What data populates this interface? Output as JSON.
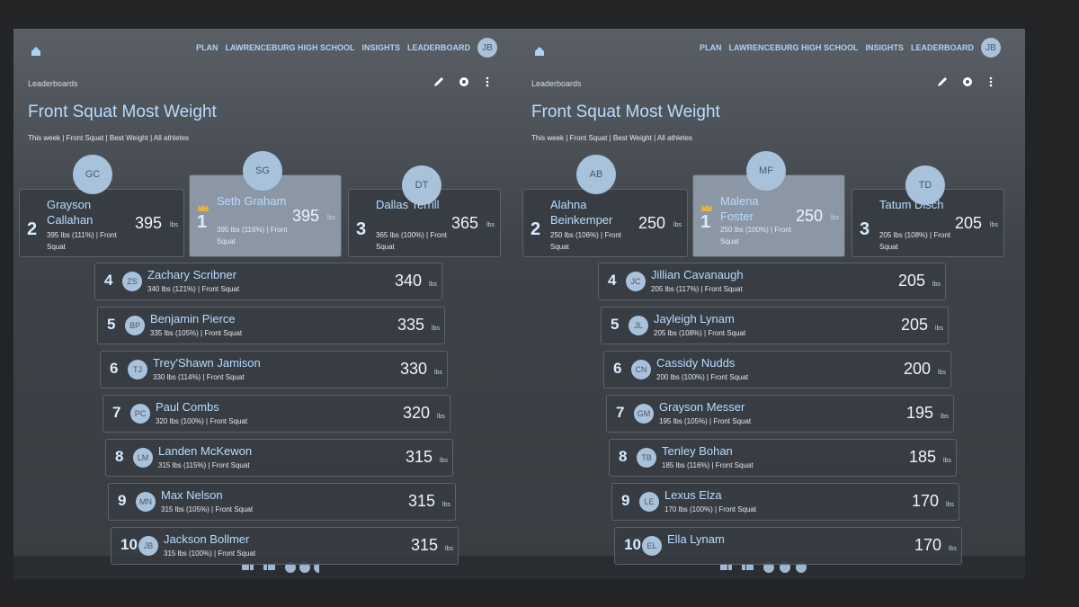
{
  "nav": {
    "items": [
      "PLAN",
      "LAWRENCEBURG HIGH SCHOOL",
      "INSIGHTS",
      "LEADERBOARD"
    ],
    "avatar": "JB"
  },
  "unit": "lbs",
  "panels": [
    {
      "breadcrumb": "Leaderboards",
      "title": "Front Squat Most Weight",
      "filters": "This week | Front Squat | Best Weight | All athletes",
      "podium": [
        {
          "rank": 2,
          "initials": "GC",
          "name": "Grayson Callahan",
          "detail": "395 lbs (111%) | Front Squat",
          "value": 395
        },
        {
          "rank": 1,
          "initials": "SG",
          "name": "Seth Graham",
          "detail": "395 lbs (116%) | Front Squat",
          "value": 395
        },
        {
          "rank": 3,
          "initials": "DT",
          "name": "Dallas Terrill",
          "detail": "365 lbs (100%) | Front Squat",
          "value": 365
        }
      ],
      "rows": [
        {
          "rank": 4,
          "initials": "ZS",
          "name": "Zachary Scribner",
          "detail": "340 lbs (121%) | Front Squat",
          "value": 340
        },
        {
          "rank": 5,
          "initials": "BP",
          "name": "Benjamin Pierce",
          "detail": "335 lbs (105%) | Front Squat",
          "value": 335
        },
        {
          "rank": 6,
          "initials": "TJ",
          "name": "Trey'Shawn Jamison",
          "detail": "330 lbs (114%) | Front Squat",
          "value": 330
        },
        {
          "rank": 7,
          "initials": "PC",
          "name": "Paul Combs",
          "detail": "320 lbs (100%) | Front Squat",
          "value": 320
        },
        {
          "rank": 8,
          "initials": "LM",
          "name": "Landen McKewon",
          "detail": "315 lbs (115%) | Front Squat",
          "value": 315
        },
        {
          "rank": 9,
          "initials": "MN",
          "name": "Max Nelson",
          "detail": "315 lbs (105%) | Front Squat",
          "value": 315
        },
        {
          "rank": 10,
          "initials": "JB",
          "name": "Jackson Bollmer",
          "detail": "315 lbs (100%) | Front Squat",
          "value": 315
        }
      ]
    },
    {
      "breadcrumb": "Leaderboards",
      "title": "Front Squat Most Weight",
      "filters": "This week | Front Squat | Best Weight | All athletes",
      "podium": [
        {
          "rank": 2,
          "initials": "AB",
          "name": "Alahna Beinkemper",
          "detail": "250 lbs (106%) | Front Squat",
          "value": 250
        },
        {
          "rank": 1,
          "initials": "MF",
          "name": "Malena Foster",
          "detail": "250 lbs (100%) | Front Squat",
          "value": 250
        },
        {
          "rank": 3,
          "initials": "TD",
          "name": "Tatum Disch",
          "detail": "205 lbs (108%) | Front Squat",
          "value": 205
        }
      ],
      "rows": [
        {
          "rank": 4,
          "initials": "JC",
          "name": "Jillian Cavanaugh",
          "detail": "205 lbs (117%) | Front Squat",
          "value": 205
        },
        {
          "rank": 5,
          "initials": "JL",
          "name": "Jayleigh Lynam",
          "detail": "205 lbs (108%) | Front Squat",
          "value": 205
        },
        {
          "rank": 6,
          "initials": "CN",
          "name": "Cassidy Nudds",
          "detail": "200 lbs (100%) | Front Squat",
          "value": 200
        },
        {
          "rank": 7,
          "initials": "GM",
          "name": "Grayson Messer",
          "detail": "195 lbs (105%) | Front Squat",
          "value": 195
        },
        {
          "rank": 8,
          "initials": "TB",
          "name": "Tenley Bohan",
          "detail": "185 lbs (116%) | Front Squat",
          "value": 185
        },
        {
          "rank": 9,
          "initials": "LE",
          "name": "Lexus Elza",
          "detail": "170 lbs (100%) | Front Squat",
          "value": 170
        },
        {
          "rank": 10,
          "initials": "EL",
          "name": "Ella Lynam",
          "value": 170
        }
      ]
    }
  ]
}
